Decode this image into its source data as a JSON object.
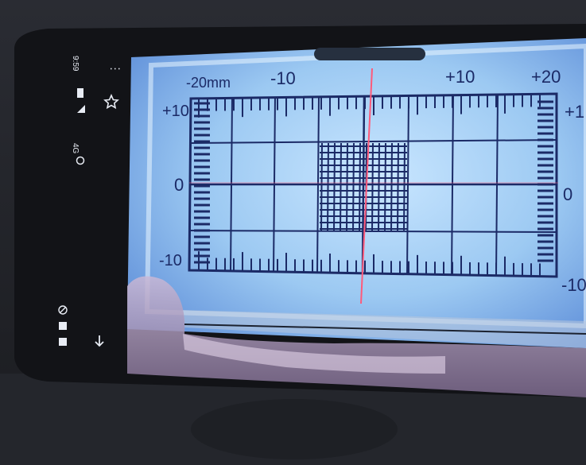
{
  "status_bar": {
    "time": "9:59",
    "network": "4G",
    "menu_glyph": "⋮"
  },
  "icons": {
    "star": "star-outline-icon",
    "back": "back-arrow-icon"
  },
  "reticle": {
    "top_labels": [
      "-20mm",
      "-10",
      "+10",
      "+20"
    ],
    "left_labels": [
      "+10",
      "0",
      "-10"
    ],
    "right_labels": [
      "+1",
      "0",
      "-10"
    ]
  },
  "colors": {
    "screen_glow": "#a9d3f5",
    "grid_line": "#1b2a66",
    "crosshair": "#ff5a7a",
    "phone_body": "#121317"
  }
}
